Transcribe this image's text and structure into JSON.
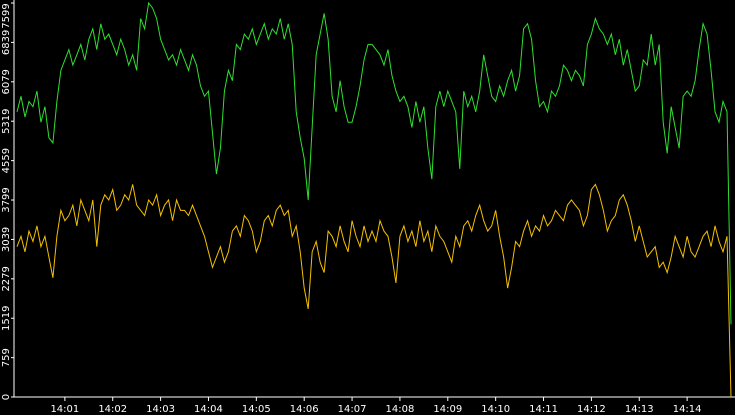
{
  "chart_data": {
    "type": "line",
    "categories": [
      null,
      null,
      null,
      null,
      null,
      null,
      null,
      null,
      null,
      null,
      null,
      null,
      "14:01",
      null,
      null,
      null,
      null,
      null,
      null,
      null,
      null,
      null,
      null,
      null,
      "14:02",
      null,
      null,
      null,
      null,
      null,
      null,
      null,
      null,
      null,
      null,
      null,
      "14:03",
      null,
      null,
      null,
      null,
      null,
      null,
      null,
      null,
      null,
      null,
      null,
      "14:04",
      null,
      null,
      null,
      null,
      null,
      null,
      null,
      null,
      null,
      null,
      null,
      "14:05",
      null,
      null,
      null,
      null,
      null,
      null,
      null,
      null,
      null,
      null,
      null,
      "14:06",
      null,
      null,
      null,
      null,
      null,
      null,
      null,
      null,
      null,
      null,
      null,
      "14:07",
      null,
      null,
      null,
      null,
      null,
      null,
      null,
      null,
      null,
      null,
      null,
      "14:08",
      null,
      null,
      null,
      null,
      null,
      null,
      null,
      null,
      null,
      null,
      null,
      "14:09",
      null,
      null,
      null,
      null,
      null,
      null,
      null,
      null,
      null,
      null,
      null,
      "14:10",
      null,
      null,
      null,
      null,
      null,
      null,
      null,
      null,
      null,
      null,
      null,
      "14:11",
      null,
      null,
      null,
      null,
      null,
      null,
      null,
      null,
      null,
      null,
      null,
      "14:12",
      null,
      null,
      null,
      null,
      null,
      null,
      null,
      null,
      null,
      null,
      null,
      "14:13",
      null,
      null,
      null,
      null,
      null,
      null,
      null,
      null,
      null,
      null,
      null,
      "14:14",
      null,
      null,
      null,
      null,
      null,
      null,
      null,
      null,
      null,
      null,
      null
    ],
    "series": [
      {
        "color": "#2fe02f",
        "values": [
          5500,
          5800,
          5400,
          5700,
          5600,
          5900,
          5300,
          5600,
          5000,
          4900,
          5700,
          6300,
          6500,
          6700,
          6400,
          6600,
          6800,
          6500,
          6900,
          7100,
          6700,
          7200,
          6900,
          7000,
          6800,
          6600,
          6900,
          6700,
          6400,
          6600,
          6300,
          7300,
          7100,
          7600,
          7500,
          7300,
          6900,
          6700,
          6500,
          6600,
          6400,
          6700,
          6500,
          6300,
          6600,
          6400,
          6000,
          5800,
          5900,
          5100,
          4300,
          4800,
          5900,
          6300,
          6100,
          6800,
          6700,
          7000,
          6900,
          7100,
          6800,
          7000,
          7200,
          6900,
          7100,
          7000,
          7300,
          6900,
          7200,
          6800,
          5500,
          5000,
          4600,
          3800,
          5200,
          6600,
          7000,
          7400,
          6900,
          5800,
          5500,
          6100,
          5600,
          5300,
          5300,
          5600,
          6000,
          6500,
          6800,
          6800,
          6700,
          6600,
          6400,
          6700,
          6200,
          5900,
          5700,
          5800,
          5600,
          5200,
          5700,
          5300,
          5600,
          4800,
          4200,
          5600,
          5900,
          5600,
          5900,
          5700,
          5500,
          4400,
          5900,
          5600,
          5800,
          5500,
          5900,
          6600,
          6200,
          5800,
          5700,
          6000,
          5800,
          6100,
          6300,
          5900,
          6200,
          7100,
          7200,
          6900,
          6100,
          5600,
          5700,
          5500,
          5900,
          5800,
          6000,
          6400,
          6300,
          6100,
          6300,
          6200,
          6000,
          6800,
          7000,
          7300,
          7100,
          7000,
          6800,
          7000,
          6600,
          6900,
          6400,
          6700,
          6300,
          5900,
          6000,
          6500,
          6400,
          7000,
          6400,
          6800,
          5300,
          4700,
          5600,
          5200,
          4800,
          5800,
          5900,
          5800,
          6100,
          6700,
          7200,
          7000,
          6300,
          5500,
          5300,
          5700,
          5500,
          1400
        ]
      },
      {
        "color": "#f5c000",
        "values": [
          2900,
          3100,
          2800,
          3200,
          3000,
          3300,
          2900,
          3100,
          2700,
          2300,
          3100,
          3600,
          3400,
          3500,
          3700,
          3300,
          3800,
          3600,
          3400,
          3800,
          2900,
          3700,
          3900,
          3800,
          4000,
          3600,
          3700,
          3900,
          3800,
          4100,
          3700,
          3600,
          3500,
          3800,
          3700,
          3900,
          3500,
          3700,
          3800,
          3400,
          3800,
          3600,
          3600,
          3500,
          3700,
          3500,
          3300,
          3100,
          2800,
          2500,
          2700,
          2900,
          2600,
          2800,
          3200,
          3300,
          3100,
          3500,
          3400,
          3200,
          2800,
          3000,
          3400,
          3500,
          3300,
          3600,
          3700,
          3500,
          3600,
          3100,
          3300,
          2800,
          2100,
          1700,
          2800,
          3000,
          2600,
          2400,
          3200,
          3100,
          2900,
          3300,
          3000,
          2800,
          3400,
          3100,
          2900,
          3300,
          3000,
          3200,
          3000,
          3400,
          3200,
          3100,
          2700,
          2200,
          3100,
          3300,
          3000,
          3200,
          2900,
          3400,
          3000,
          3200,
          2800,
          3300,
          3100,
          3000,
          2800,
          2600,
          3100,
          2900,
          3300,
          3400,
          3200,
          3500,
          3700,
          3400,
          3200,
          3300,
          3600,
          3100,
          2700,
          2100,
          2500,
          3000,
          2900,
          3200,
          3400,
          3100,
          3300,
          3200,
          3500,
          3300,
          3400,
          3600,
          3500,
          3400,
          3700,
          3800,
          3700,
          3600,
          3300,
          3500,
          4000,
          4100,
          3900,
          3600,
          3200,
          3400,
          3500,
          3800,
          3900,
          3700,
          3400,
          3000,
          3300,
          3000,
          2700,
          2800,
          2900,
          2500,
          2600,
          2400,
          2700,
          3100,
          2900,
          2700,
          3100,
          2800,
          2700,
          2900,
          3100,
          3200,
          2900,
          3300,
          3000,
          2800,
          3100,
          0
        ]
      }
    ],
    "ylim": [
      0,
      7599
    ],
    "yticks": [
      0,
      759,
      1519,
      2279,
      3039,
      3799,
      4559,
      5319,
      6079,
      6839,
      7599
    ]
  }
}
